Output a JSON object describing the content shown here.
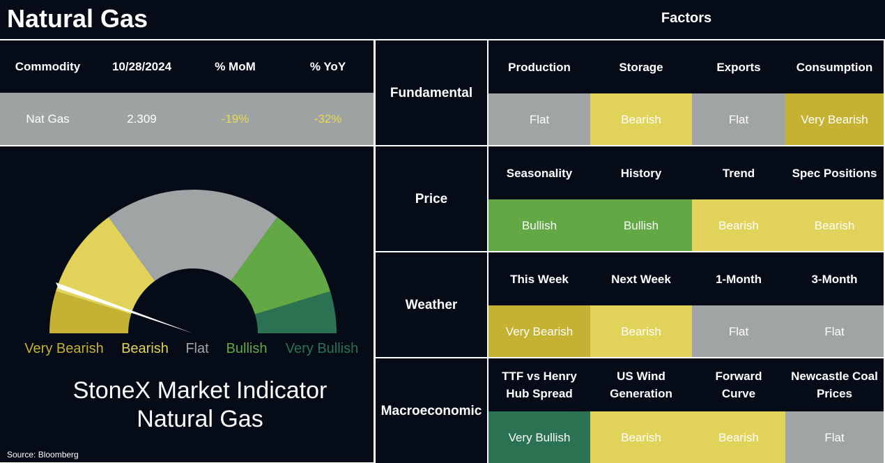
{
  "title": "Natural Gas",
  "factors_title": "Factors",
  "commodity_table": {
    "headers": [
      "Commodity",
      "10/28/2024",
      "% MoM",
      "% YoY"
    ],
    "row": [
      "Nat Gas",
      "2.309",
      "-19%",
      "-32%"
    ]
  },
  "gauge": {
    "segments": [
      {
        "label": "Very Bearish",
        "color": "#c6b232"
      },
      {
        "label": "Bearish",
        "color": "#e1d35a"
      },
      {
        "label": "Flat",
        "color": "#a0a4a4"
      },
      {
        "label": "Bullish",
        "color": "#62a844"
      },
      {
        "label": "Very Bullish",
        "color": "#2a7252"
      }
    ],
    "title": [
      "StoneX Market Indicator",
      "Natural Gas"
    ]
  },
  "factors": [
    {
      "name": "Fundamental",
      "items": [
        {
          "label": [
            "Production"
          ],
          "rating": "Flat"
        },
        {
          "label": [
            "Storage"
          ],
          "rating": "Bearish"
        },
        {
          "label": [
            "Exports"
          ],
          "rating": "Flat"
        },
        {
          "label": [
            "Consumption"
          ],
          "rating": "Very Bearish"
        }
      ]
    },
    {
      "name": "Price",
      "items": [
        {
          "label": [
            "Seasonality"
          ],
          "rating": "Bullish"
        },
        {
          "label": [
            "History"
          ],
          "rating": "Bullish"
        },
        {
          "label": [
            "Trend"
          ],
          "rating": "Bearish"
        },
        {
          "label": [
            "Spec Positions"
          ],
          "rating": "Bearish"
        }
      ]
    },
    {
      "name": "Weather",
      "items": [
        {
          "label": [
            "This Week"
          ],
          "rating": "Very Bearish"
        },
        {
          "label": [
            "Next Week"
          ],
          "rating": "Bearish"
        },
        {
          "label": [
            "1-Month"
          ],
          "rating": "Flat"
        },
        {
          "label": [
            "3-Month"
          ],
          "rating": "Flat"
        }
      ]
    },
    {
      "name": "Macroeconomic",
      "items": [
        {
          "label": [
            "TTF vs Henry",
            "Hub Spread"
          ],
          "rating": "Very Bullish"
        },
        {
          "label": [
            "US Wind",
            "Generation"
          ],
          "rating": "Bearish"
        },
        {
          "label": [
            "Forward",
            "Curve"
          ],
          "rating": "Bearish"
        },
        {
          "label": [
            "Newcastle Coal",
            "Prices"
          ],
          "rating": "Flat"
        }
      ]
    }
  ],
  "source": "Source: Bloomberg"
}
